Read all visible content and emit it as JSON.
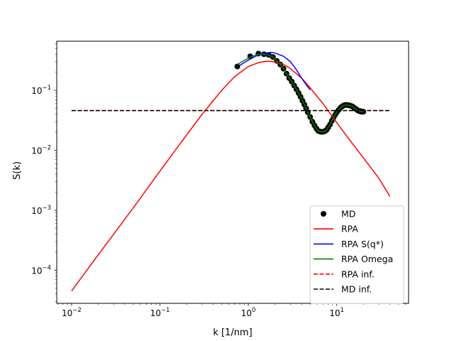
{
  "chart_data": {
    "type": "line",
    "xlabel": "k [1/nm]",
    "ylabel": "S(k)",
    "x_scale": "log",
    "y_scale": "log",
    "xlim": [
      0.0068,
      65
    ],
    "ylim": [
      2.8e-05,
      0.66
    ],
    "x_ticks": [
      {
        "value": 0.01,
        "base": "10",
        "exp": "−2"
      },
      {
        "value": 0.1,
        "base": "10",
        "exp": "−1"
      },
      {
        "value": 1,
        "base": "10",
        "exp": "0"
      },
      {
        "value": 10,
        "base": "10",
        "exp": "1"
      }
    ],
    "y_ticks": [
      {
        "value": 0.0001,
        "base": "10",
        "exp": "−4"
      },
      {
        "value": 0.001,
        "base": "10",
        "exp": "−3"
      },
      {
        "value": 0.01,
        "base": "10",
        "exp": "−2"
      },
      {
        "value": 0.1,
        "base": "10",
        "exp": "−1"
      }
    ],
    "grid": false,
    "legend_position": "lower-right",
    "series": [
      {
        "name": "MD",
        "kind": "markers",
        "color": "#000000",
        "x": [
          0.75,
          1.05,
          1.3,
          1.5,
          1.7,
          1.9,
          2.1,
          2.3,
          2.5,
          2.7,
          2.9,
          3.1,
          3.3,
          3.5,
          3.7,
          3.9,
          4.1,
          4.3,
          4.5,
          4.7,
          5.0,
          5.3,
          5.6,
          5.9,
          6.2,
          6.5,
          6.8,
          7.1,
          7.4,
          7.7,
          8.0,
          8.4,
          8.8,
          9.2,
          9.6,
          10.0,
          10.5,
          11.0,
          11.5,
          12.0,
          12.5,
          13.0,
          13.5,
          14.0,
          14.5,
          15.0,
          15.5,
          16.0,
          16.5,
          17.0,
          17.5,
          18.0,
          18.5,
          19.0,
          19.5,
          20.0
        ],
        "y": [
          0.25,
          0.37,
          0.41,
          0.4,
          0.39,
          0.36,
          0.31,
          0.27,
          0.23,
          0.19,
          0.16,
          0.14,
          0.12,
          0.104,
          0.09,
          0.078,
          0.067,
          0.058,
          0.05,
          0.043,
          0.036,
          0.03,
          0.026,
          0.023,
          0.021,
          0.0205,
          0.0202,
          0.0205,
          0.021,
          0.022,
          0.024,
          0.027,
          0.031,
          0.035,
          0.039,
          0.043,
          0.047,
          0.051,
          0.054,
          0.056,
          0.057,
          0.057,
          0.0565,
          0.056,
          0.055,
          0.054,
          0.052,
          0.05,
          0.049,
          0.047,
          0.046,
          0.045,
          0.045,
          0.044,
          0.044,
          0.044
        ]
      },
      {
        "name": "RPA",
        "kind": "line",
        "color": "#ff0000",
        "x": [
          0.01,
          0.02,
          0.05,
          0.1,
          0.2,
          0.3,
          0.5,
          0.7,
          1.0,
          1.3,
          1.6,
          2.0,
          2.5,
          3.0,
          4.0,
          5.0,
          7.0,
          10.0,
          15.0,
          20.0,
          30.0,
          40.0
        ],
        "y": [
          4.5e-05,
          0.00018,
          0.0011,
          0.0045,
          0.018,
          0.04,
          0.1,
          0.17,
          0.25,
          0.29,
          0.305,
          0.3,
          0.27,
          0.23,
          0.16,
          0.11,
          0.06,
          0.029,
          0.013,
          0.0075,
          0.0034,
          0.0017
        ]
      },
      {
        "name": "RPA S(q*)",
        "kind": "line",
        "color": "#0000ff",
        "x": [
          0.8,
          1.0,
          1.2,
          1.5,
          1.8,
          2.0,
          2.5,
          3.0,
          3.5,
          4.0,
          4.5,
          5.0
        ],
        "y": [
          0.26,
          0.32,
          0.37,
          0.415,
          0.43,
          0.42,
          0.37,
          0.3,
          0.22,
          0.16,
          0.125,
          0.102
        ]
      },
      {
        "name": "RPA Omega",
        "kind": "line",
        "color": "#008000",
        "x": [
          0.75,
          1.05,
          1.3,
          1.5,
          1.7,
          1.9,
          2.1,
          2.3,
          2.5,
          2.7,
          2.9,
          3.1,
          3.3,
          3.5,
          3.7,
          3.9,
          4.1,
          4.3,
          4.5,
          4.7,
          5.0,
          5.3,
          5.6,
          5.9,
          6.2,
          6.5,
          6.8,
          7.1,
          7.4,
          7.7,
          8.0,
          8.4,
          8.8,
          9.2,
          9.6,
          10.0,
          10.5,
          11.0,
          11.5,
          12.0,
          12.5,
          13.0,
          13.5,
          14.0,
          14.5,
          15.0,
          15.5,
          16.0,
          16.5,
          17.0,
          17.5,
          18.0,
          18.5,
          19.0,
          19.5,
          20.0
        ],
        "y": [
          0.27,
          0.36,
          0.4,
          0.4,
          0.39,
          0.36,
          0.31,
          0.27,
          0.23,
          0.19,
          0.16,
          0.14,
          0.12,
          0.104,
          0.09,
          0.078,
          0.067,
          0.058,
          0.05,
          0.043,
          0.036,
          0.03,
          0.026,
          0.023,
          0.021,
          0.0205,
          0.0202,
          0.0205,
          0.021,
          0.022,
          0.024,
          0.027,
          0.031,
          0.035,
          0.039,
          0.043,
          0.047,
          0.051,
          0.054,
          0.056,
          0.057,
          0.057,
          0.0565,
          0.056,
          0.055,
          0.054,
          0.052,
          0.05,
          0.049,
          0.047,
          0.046,
          0.045,
          0.045,
          0.044,
          0.044,
          0.044
        ]
      },
      {
        "name": "RPA inf.",
        "kind": "dashed",
        "color": "#ff0000",
        "x": [
          0.01,
          40.0
        ],
        "y": [
          0.046,
          0.046
        ]
      },
      {
        "name": "MD inf.",
        "kind": "dashed",
        "color": "#000000",
        "x": [
          0.01,
          40.0
        ],
        "y": [
          0.046,
          0.046
        ]
      }
    ]
  }
}
